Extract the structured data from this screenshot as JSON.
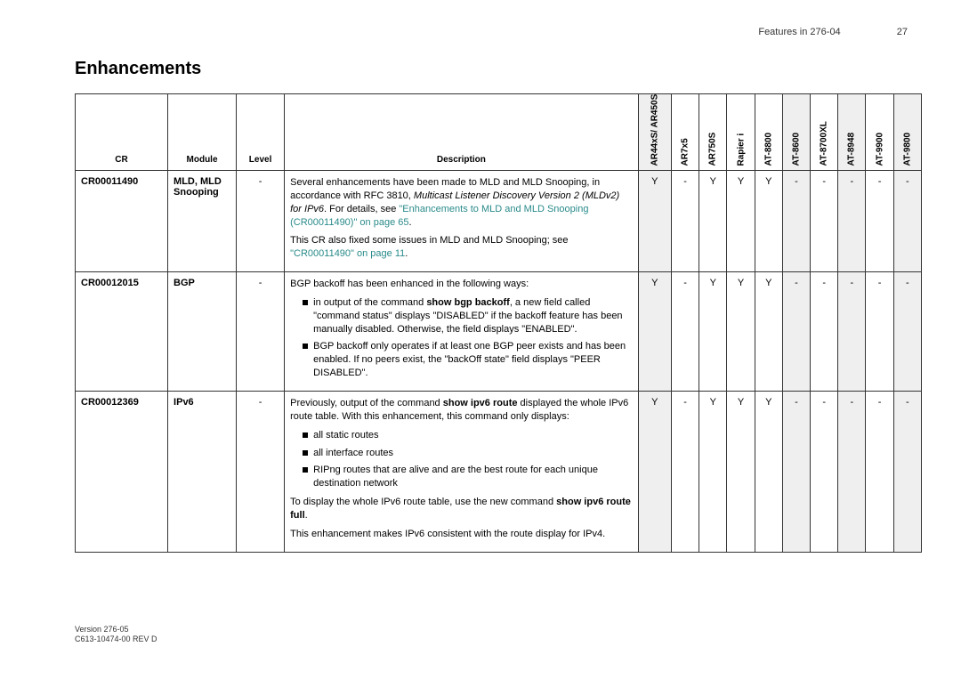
{
  "header": {
    "section": "Features in 276-04",
    "page_num": "27"
  },
  "title": "Enhancements",
  "columns": {
    "cr": "CR",
    "module": "Module",
    "level": "Level",
    "description": "Description",
    "products": [
      "AR44xS/ AR450S",
      "AR7x5",
      "AR750S",
      "Rapier i",
      "AT-8800",
      "AT-8600",
      "AT-8700XL",
      "AT-8948",
      "AT-9900",
      "AT-9800"
    ]
  },
  "shaded_product_cols": [
    0,
    5,
    7,
    9
  ],
  "rows": [
    {
      "cr": "CR00011490",
      "module": "MLD, MLD Snooping",
      "level": "-",
      "support": [
        "Y",
        "-",
        "Y",
        "Y",
        "Y",
        "-",
        "-",
        "-",
        "-",
        "-"
      ],
      "desc": {
        "p1_a": "Several enhancements have been made to MLD and MLD Snooping, in accordance with RFC 3810, ",
        "p1_ital": "Multicast Listener Discovery Version 2 (MLDv2) for IPv6",
        "p1_b": ". For details, see ",
        "p1_link": "\"Enhancements to MLD and MLD Snooping (CR00011490)\" on page 65",
        "p1_c": ".",
        "p2_a": "This CR also fixed some issues in MLD and MLD Snooping; see ",
        "p2_link": "\"CR00011490\" on page 11",
        "p2_b": "."
      }
    },
    {
      "cr": "CR00012015",
      "module": "BGP",
      "level": "-",
      "support": [
        "Y",
        "-",
        "Y",
        "Y",
        "Y",
        "-",
        "-",
        "-",
        "-",
        "-"
      ],
      "desc": {
        "intro": "BGP backoff has been enhanced in the following ways:",
        "b1_a": "in output of the command ",
        "b1_bold": "show bgp backoff",
        "b1_b": ", a new field called \"command status\" displays \"DISABLED\" if the backoff feature has been manually disabled. Otherwise, the field displays \"ENABLED\".",
        "b2": "BGP backoff only operates if at least one BGP peer exists and has been enabled. If no peers exist, the \"backOff state\" field displays \"PEER DISABLED\"."
      }
    },
    {
      "cr": "CR00012369",
      "module": "IPv6",
      "level": "-",
      "support": [
        "Y",
        "-",
        "Y",
        "Y",
        "Y",
        "-",
        "-",
        "-",
        "-",
        "-"
      ],
      "desc": {
        "p1_a": "Previously, output of the command ",
        "p1_bold": "show ipv6 route",
        "p1_b": " displayed the whole IPv6 route table. With this enhancement, this command only displays:",
        "b1": "all static routes",
        "b2": "all interface routes",
        "b3": "RIPng routes that are alive and are the best route for each unique destination network",
        "p2_a": "To display the whole IPv6 route table, use the new command ",
        "p2_bold": "show ipv6 route full",
        "p2_b": ".",
        "p3": "This enhancement makes IPv6 consistent with the route display for IPv4."
      }
    }
  ],
  "footer": {
    "l1": "Version 276-05",
    "l2": "C613-10474-00 REV D"
  }
}
